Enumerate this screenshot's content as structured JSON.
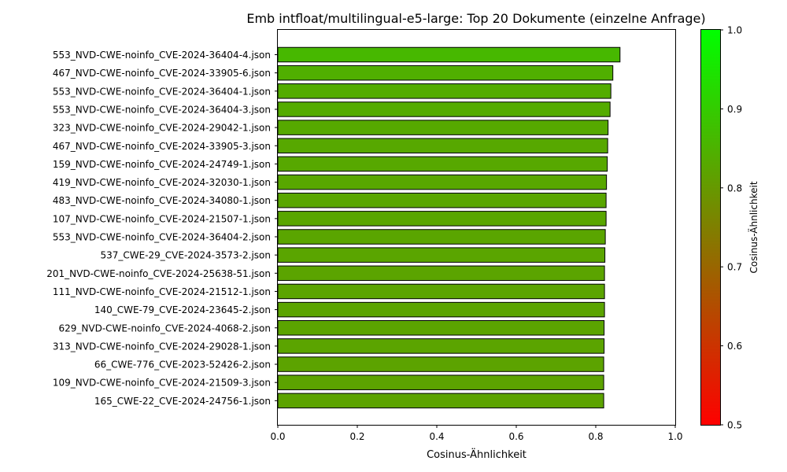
{
  "chart_data": {
    "type": "bar",
    "orientation": "horizontal",
    "title": "Emb intfloat/multilingual-e5-large: Top 20 Dokumente (einzelne Anfrage)",
    "xlabel": "Cosinus-Ähnlichkeit",
    "ylabel": "",
    "xlim": [
      0.0,
      1.0
    ],
    "xticks": [
      "0.0",
      "0.2",
      "0.4",
      "0.6",
      "0.8",
      "1.0"
    ],
    "grid": false,
    "categories": [
      "553_NVD-CWE-noinfo_CVE-2024-36404-4.json",
      "467_NVD-CWE-noinfo_CVE-2024-33905-6.json",
      "553_NVD-CWE-noinfo_CVE-2024-36404-1.json",
      "553_NVD-CWE-noinfo_CVE-2024-36404-3.json",
      "323_NVD-CWE-noinfo_CVE-2024-29042-1.json",
      "467_NVD-CWE-noinfo_CVE-2024-33905-3.json",
      "159_NVD-CWE-noinfo_CVE-2024-24749-1.json",
      "419_NVD-CWE-noinfo_CVE-2024-32030-1.json",
      "483_NVD-CWE-noinfo_CVE-2024-34080-1.json",
      "107_NVD-CWE-noinfo_CVE-2024-21507-1.json",
      "553_NVD-CWE-noinfo_CVE-2024-36404-2.json",
      "537_CWE-29_CVE-2024-3573-2.json",
      "201_NVD-CWE-noinfo_CVE-2024-25638-51.json",
      "111_NVD-CWE-noinfo_CVE-2024-21512-1.json",
      "140_CWE-79_CVE-2024-23645-2.json",
      "629_NVD-CWE-noinfo_CVE-2024-4068-2.json",
      "313_NVD-CWE-noinfo_CVE-2024-29028-1.json",
      "66_CWE-776_CVE-2023-52426-2.json",
      "109_NVD-CWE-noinfo_CVE-2024-21509-3.json",
      "165_CWE-22_CVE-2024-24756-1.json"
    ],
    "values": [
      0.861,
      0.843,
      0.838,
      0.836,
      0.831,
      0.83,
      0.829,
      0.827,
      0.826,
      0.826,
      0.824,
      0.823,
      0.822,
      0.822,
      0.822,
      0.821,
      0.821,
      0.82,
      0.82,
      0.82
    ],
    "colorbar": {
      "label": "Cosinus-Ähnlichkeit",
      "range": [
        0.5,
        1.0
      ],
      "ticks": [
        "0.5",
        "0.6",
        "0.7",
        "0.8",
        "0.9",
        "1.0"
      ],
      "color_low": "#ff0000",
      "color_high": "#00ff00"
    },
    "bar_edge_color": "#000000"
  }
}
